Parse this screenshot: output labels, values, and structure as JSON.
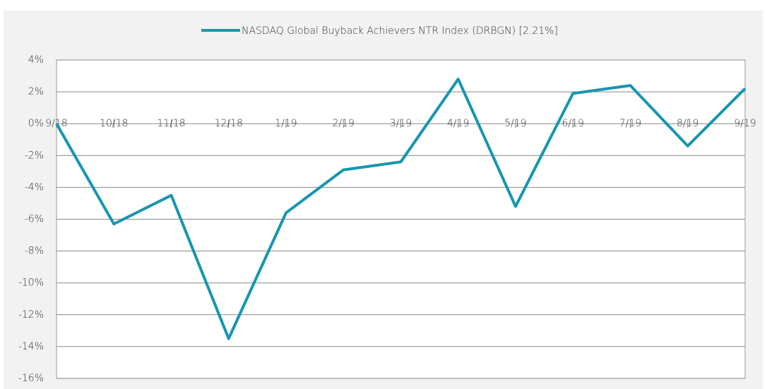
{
  "chart_data": {
    "type": "line",
    "categories": [
      "9/18",
      "10/18",
      "11/18",
      "12/18",
      "1/19",
      "2/19",
      "3/19",
      "4/19",
      "5/19",
      "6/19",
      "7/19",
      "8/19",
      "9/19"
    ],
    "series": [
      {
        "name": "NASDAQ Global Buyback Achievers NTR Index (DRBGN) [2.21%]",
        "color": "#1796b0",
        "values": [
          0,
          -6.3,
          -4.5,
          -13.5,
          -5.6,
          -2.9,
          -2.4,
          2.8,
          -5.2,
          1.9,
          2.4,
          -1.4,
          2.21
        ]
      }
    ],
    "ylim": [
      -16,
      4
    ],
    "yticks": [
      {
        "value": -16,
        "label": "-16%"
      },
      {
        "value": -14,
        "label": "-14%"
      },
      {
        "value": -12,
        "label": "-12%"
      },
      {
        "value": -10,
        "label": "-10%"
      },
      {
        "value": -8,
        "label": "-8%"
      },
      {
        "value": -6,
        "label": "-6%"
      },
      {
        "value": -4,
        "label": "-4%"
      },
      {
        "value": -2,
        "label": "-2%"
      },
      {
        "value": 0,
        "label": "0%"
      },
      {
        "value": 2,
        "label": "2%"
      },
      {
        "value": 4,
        "label": "4%"
      }
    ],
    "grid": true,
    "legend": "top"
  }
}
